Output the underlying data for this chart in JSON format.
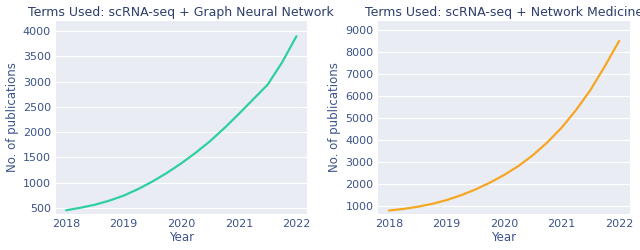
{
  "left_title": "Terms Used: scRNA-seq + Graph Neural Network",
  "right_title": "Terms Used: scRNA-seq + Network Medicine",
  "xlabel": "Year",
  "ylabel": "No. of publications",
  "x_values": [
    2018,
    2018.25,
    2018.5,
    2018.75,
    2019,
    2019.25,
    2019.5,
    2019.75,
    2020,
    2020.25,
    2020.5,
    2020.75,
    2021,
    2021.25,
    2021.5,
    2021.75,
    2022
  ],
  "left_y": [
    450,
    500,
    560,
    640,
    740,
    870,
    1020,
    1190,
    1380,
    1590,
    1820,
    2080,
    2360,
    2650,
    2940,
    3380,
    3900
  ],
  "right_y": [
    800,
    870,
    970,
    1100,
    1270,
    1490,
    1750,
    2060,
    2410,
    2820,
    3310,
    3890,
    4560,
    5360,
    6270,
    7350,
    8500
  ],
  "left_color": "#2ecfa3",
  "right_color": "#f5a623",
  "title_color": "#2c3e6b",
  "tick_color": "#3c5488",
  "bg_color": "#eaecf4",
  "fig_bg_color": "#ffffff",
  "title_fontsize": 9.0,
  "label_fontsize": 8.5,
  "tick_fontsize": 8,
  "left_yticks": [
    500,
    1000,
    1500,
    2000,
    2500,
    3000,
    3500,
    4000
  ],
  "right_yticks": [
    1000,
    2000,
    3000,
    4000,
    5000,
    6000,
    7000,
    8000,
    9000
  ],
  "left_ylim": [
    380,
    4200
  ],
  "right_ylim": [
    650,
    9400
  ],
  "xlim": [
    2017.82,
    2022.18
  ],
  "xticks": [
    2018,
    2019,
    2020,
    2021,
    2022
  ],
  "grid_color": "#ffffff",
  "grid_alpha": 1.0,
  "grid_lw": 0.8,
  "line_width": 1.6
}
